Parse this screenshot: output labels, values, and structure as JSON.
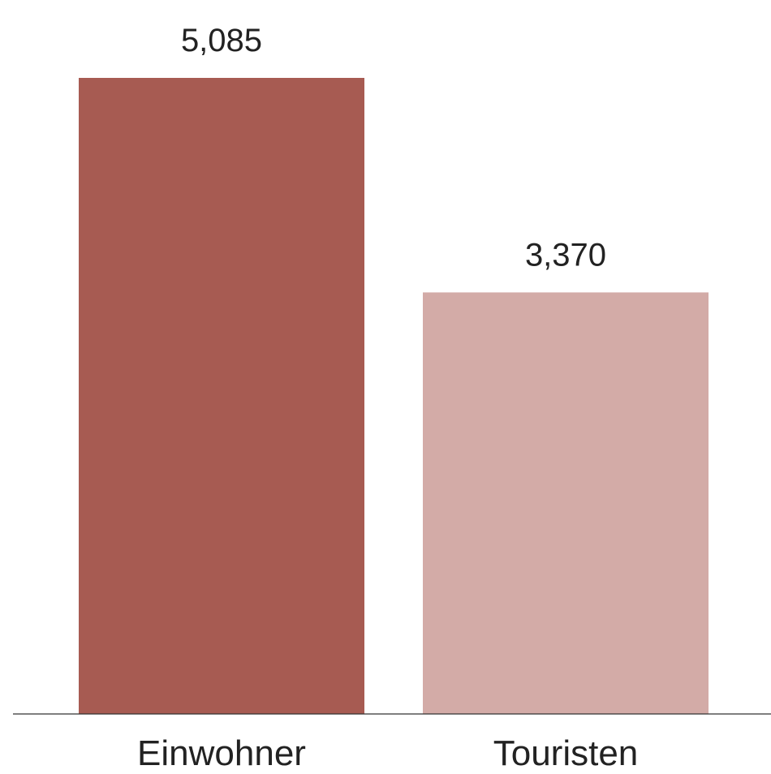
{
  "chart_data": {
    "type": "bar",
    "categories": [
      "Einwohner",
      "Touristen"
    ],
    "values": [
      5085,
      3370
    ],
    "value_labels": [
      "5,085",
      "3,370"
    ],
    "colors": [
      "#a75b52",
      "#d3aba7"
    ],
    "title": "",
    "xlabel": "",
    "ylabel": "",
    "ylim": [
      0,
      5085
    ],
    "grid": false,
    "legend": "none",
    "axis_color": "#333333"
  }
}
